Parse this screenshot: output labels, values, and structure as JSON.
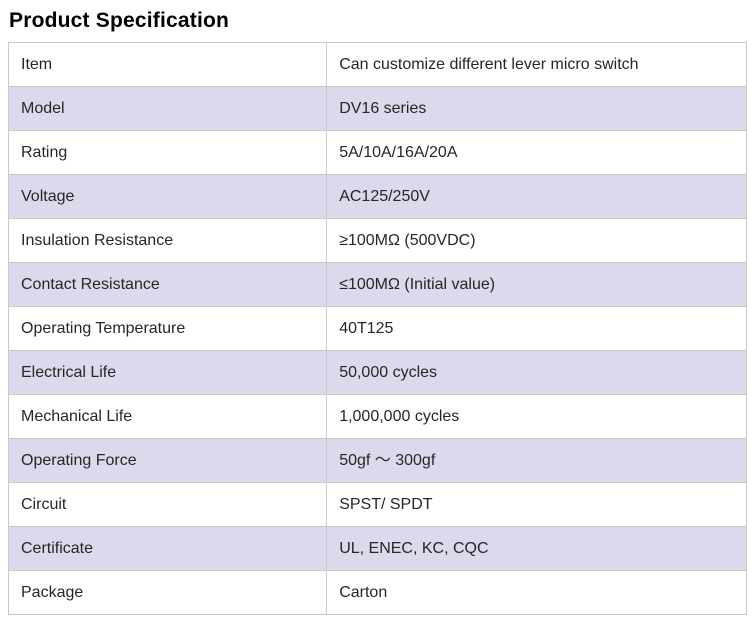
{
  "title": "Product Specification",
  "table": {
    "rows": [
      {
        "label": "Item",
        "value": "Can customize different lever micro switch"
      },
      {
        "label": "Model",
        "value": "DV16 series"
      },
      {
        "label": "Rating",
        "value": "5A/10A/16A/20A"
      },
      {
        "label": "Voltage",
        "value": "AC125/250V"
      },
      {
        "label": "Insulation Resistance",
        "value": "≥100MΩ (500VDC)"
      },
      {
        "label": "Contact Resistance",
        "value": "≤100MΩ (Initial value)"
      },
      {
        "label": "Operating Temperature",
        "value": "40T125"
      },
      {
        "label": "Electrical Life",
        "value": "50,000 cycles"
      },
      {
        "label": "Mechanical Life",
        "value": "1,000,000 cycles"
      },
      {
        "label": "Operating Force",
        "value": "50gf ～ 300gf"
      },
      {
        "label": "Circuit",
        "value": "SPST/ SPDT"
      },
      {
        "label": "Certificate",
        "value": "UL, ENEC, KC, CQC"
      },
      {
        "label": "Package",
        "value": "Carton"
      }
    ]
  },
  "colors": {
    "alt_row_bg": "#dadaec",
    "border": "#c9c9c9",
    "title_color": "#000000",
    "text_color": "#262626"
  }
}
